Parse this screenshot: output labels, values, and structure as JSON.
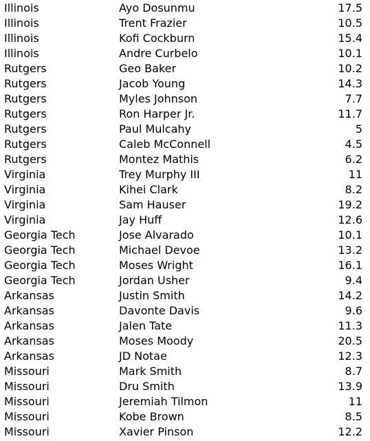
{
  "rows": [
    {
      "team": "Illinois",
      "player": "Ayo Dosunmu",
      "value": "17.5"
    },
    {
      "team": "Illinois",
      "player": "Trent Frazier",
      "value": "10.5"
    },
    {
      "team": "Illinois",
      "player": "Kofi Cockburn",
      "value": "15.4"
    },
    {
      "team": "Illinois",
      "player": "Andre Curbelo",
      "value": "10.1"
    },
    {
      "team": "Rutgers",
      "player": "Geo Baker",
      "value": "10.2"
    },
    {
      "team": "Rutgers",
      "player": "Jacob Young",
      "value": "14.3"
    },
    {
      "team": "Rutgers",
      "player": "Myles Johnson",
      "value": "7.7"
    },
    {
      "team": "Rutgers",
      "player": "Ron Harper Jr.",
      "value": "11.7"
    },
    {
      "team": "Rutgers",
      "player": "Paul Mulcahy",
      "value": "5"
    },
    {
      "team": "Rutgers",
      "player": "Caleb McConnell",
      "value": "4.5"
    },
    {
      "team": "Rutgers",
      "player": "Montez Mathis",
      "value": "6.2"
    },
    {
      "team": "Virginia",
      "player": "Trey Murphy III",
      "value": "11"
    },
    {
      "team": "Virginia",
      "player": "Kihei Clark",
      "value": "8.2"
    },
    {
      "team": "Virginia",
      "player": "Sam Hauser",
      "value": "19.2"
    },
    {
      "team": "Virginia",
      "player": "Jay Huff",
      "value": "12.6"
    },
    {
      "team": "Georgia Tech",
      "player": "Jose Alvarado",
      "value": "10.1"
    },
    {
      "team": "Georgia Tech",
      "player": "Michael Devoe",
      "value": "13.2"
    },
    {
      "team": "Georgia Tech",
      "player": "Moses Wright",
      "value": "16.1"
    },
    {
      "team": "Georgia Tech",
      "player": "Jordan Usher",
      "value": "9.4"
    },
    {
      "team": "Arkansas",
      "player": "Justin Smith",
      "value": "14.2"
    },
    {
      "team": "Arkansas",
      "player": "Davonte Davis",
      "value": "9.6"
    },
    {
      "team": "Arkansas",
      "player": "Jalen Tate",
      "value": "11.3"
    },
    {
      "team": "Arkansas",
      "player": "Moses Moody",
      "value": "20.5"
    },
    {
      "team": "Arkansas",
      "player": "JD Notae",
      "value": "12.3"
    },
    {
      "team": "Missouri",
      "player": "Mark Smith",
      "value": "8.7"
    },
    {
      "team": "Missouri",
      "player": "Dru Smith",
      "value": "13.9"
    },
    {
      "team": "Missouri",
      "player": "Jeremiah Tilmon",
      "value": "11"
    },
    {
      "team": "Missouri",
      "player": "Kobe Brown",
      "value": "8.5"
    },
    {
      "team": "Missouri",
      "player": "Xavier Pinson",
      "value": "12.2"
    }
  ]
}
